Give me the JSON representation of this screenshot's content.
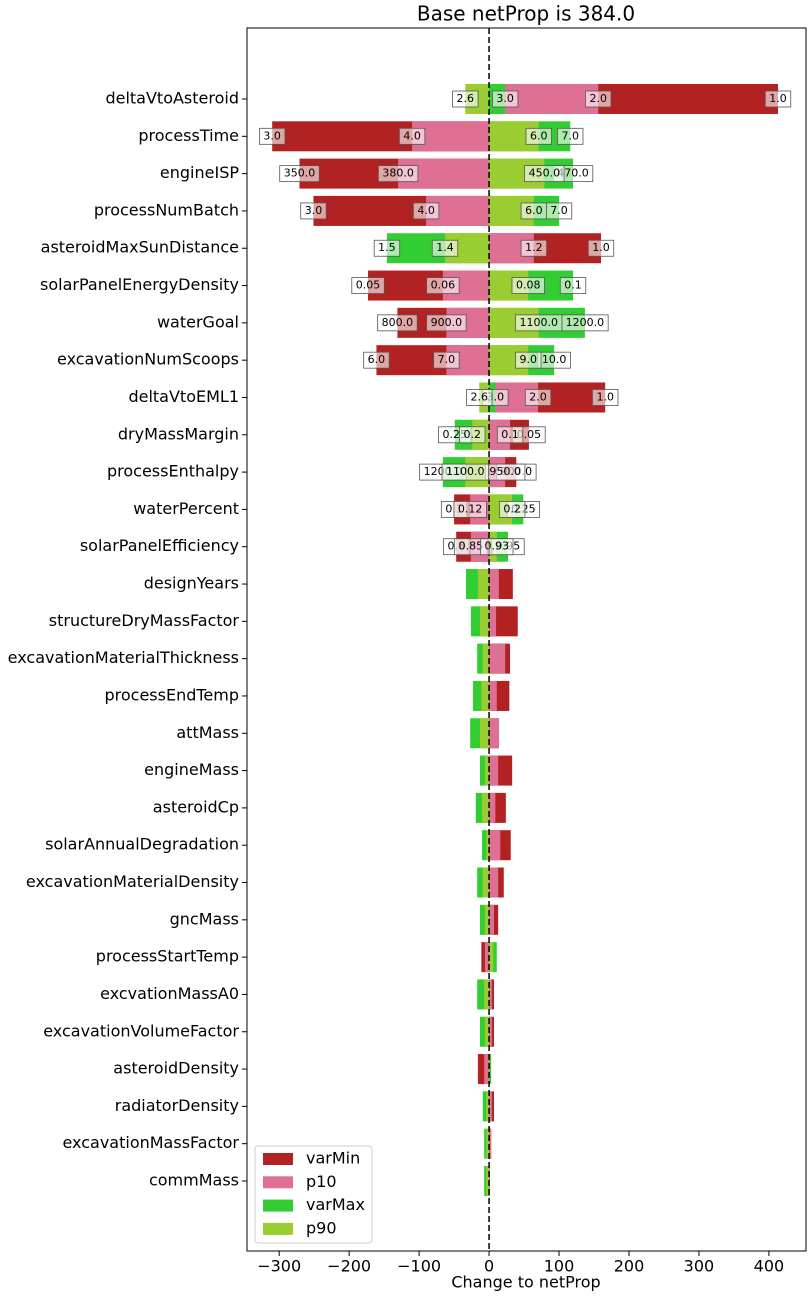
{
  "chart_data": {
    "type": "tornado",
    "title": "Base netProp is 384.0",
    "x_label": "Change to netProp",
    "categories": [
      "deltaVtoAsteroid",
      "processTime",
      "engineISP",
      "processNumBatch",
      "asteroidMaxSunDistance",
      "solarPanelEnergyDensity",
      "waterGoal",
      "excavationNumScoops",
      "deltaVtoEML1",
      "dryMassMargin",
      "processEnthalpy",
      "waterPercent",
      "solarPanelEfficiency",
      "designYears",
      "structureDryMassFactor",
      "excavationMaterialThickness",
      "processEndTemp",
      "attMass",
      "engineMass",
      "asteroidCp",
      "solarAnnualDegradation",
      "excavationMaterialDensity",
      "gncMass",
      "processStartTemp",
      "excvationMassA0",
      "excavationVolumeFactor",
      "asteroidDensity",
      "radiatorDensity",
      "excavationMassFactor",
      "commMass"
    ],
    "series": [
      {
        "name": "varMin",
        "color": "#b22222",
        "values": [
          413,
          -310,
          -271,
          -251,
          160,
          -173,
          -131,
          -161,
          166,
          57,
          39,
          -50,
          -47,
          34,
          41,
          30,
          29,
          14,
          33,
          24,
          31,
          21,
          13,
          -11,
          7,
          7,
          -16,
          7,
          3,
          1
        ],
        "labels": [
          "1.0",
          "3.0",
          "350.0",
          "3.0",
          "1.0",
          "0.05",
          "800.0",
          "6.0",
          "1.0",
          "0.05",
          "900.0",
          "0.1",
          "0.8",
          null,
          null,
          null,
          null,
          null,
          null,
          null,
          null,
          null,
          null,
          null,
          null,
          null,
          null,
          null,
          null,
          null
        ]
      },
      {
        "name": "p10",
        "color": "#de7093",
        "values": [
          156,
          -110,
          -130,
          -90,
          64,
          -66,
          -61,
          -61,
          70,
          30,
          23,
          -27,
          -26,
          14,
          10,
          23,
          11,
          14,
          13,
          9,
          16,
          13,
          7,
          -6,
          4,
          4,
          -7,
          4,
          3,
          1
        ],
        "labels": [
          "2.0",
          "4.0",
          "380.0",
          "4.0",
          "1.2",
          "0.06",
          "900.0",
          "7.0",
          "2.0",
          "0.1",
          "950.0",
          "0.12",
          "0.85",
          null,
          null,
          null,
          null,
          null,
          null,
          null,
          null,
          null,
          null,
          null,
          null,
          null,
          null,
          null,
          null,
          null
        ]
      },
      {
        "name": "varMax",
        "color": "#32cd32",
        "values": [
          23,
          116,
          120,
          100,
          -146,
          120,
          137,
          93,
          9,
          -49,
          -66,
          49,
          27,
          -33,
          -26,
          -17,
          -23,
          -27,
          -13,
          -19,
          -10,
          -17,
          -13,
          11,
          -17,
          -13,
          3,
          -9,
          -7,
          -7
        ],
        "labels": [
          "3.0",
          "7.0",
          "470.0",
          "7.0",
          "1.5",
          "0.1",
          "1200.0",
          "10.0",
          "3.0",
          "0.25",
          "1200.0",
          "0.25",
          "0.95",
          null,
          null,
          null,
          null,
          null,
          null,
          null,
          null,
          null,
          null,
          null,
          null,
          null,
          null,
          null,
          null,
          null
        ]
      },
      {
        "name": "p90",
        "color": "#9acd32",
        "values": [
          -34,
          71,
          79,
          64,
          -63,
          56,
          71,
          56,
          -14,
          -24,
          -34,
          33,
          11,
          -16,
          -13,
          -9,
          -11,
          -13,
          -6,
          -10,
          -4,
          -9,
          -6,
          6,
          -7,
          -6,
          1,
          -4,
          -4,
          -4
        ],
        "labels": [
          "2.6",
          "6.0",
          "450.0",
          "6.0",
          "1.4",
          "0.08",
          "1100.0",
          "9.0",
          "2.6",
          "0.2",
          "1100.0",
          "0.2",
          "0.93",
          null,
          null,
          null,
          null,
          null,
          null,
          null,
          null,
          null,
          null,
          null,
          null,
          null,
          null,
          null,
          null,
          null
        ]
      }
    ],
    "xlim": [
      -346,
      453
    ],
    "xticks": [
      {
        "value": -300,
        "label": "−300"
      },
      {
        "value": -200,
        "label": "−200"
      },
      {
        "value": -100,
        "label": "−100"
      },
      0,
      100,
      200,
      300,
      400
    ],
    "legend": "lower left"
  }
}
